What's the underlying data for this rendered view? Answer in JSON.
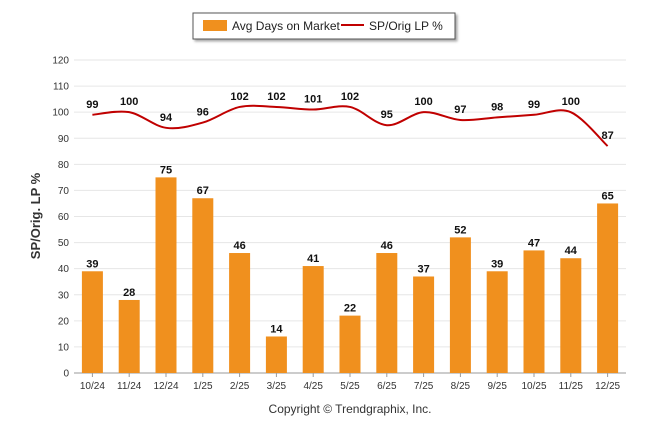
{
  "chart_data": {
    "type": "bar",
    "categories": [
      "10/24",
      "11/24",
      "12/24",
      "1/25",
      "2/25",
      "3/25",
      "4/25",
      "5/25",
      "6/25",
      "7/25",
      "8/25",
      "9/25",
      "10/25",
      "11/25",
      "12/25"
    ],
    "series": [
      {
        "name": "Avg Days on Market",
        "type": "bar",
        "values": [
          39,
          28,
          75,
          67,
          46,
          14,
          41,
          22,
          46,
          37,
          52,
          39,
          47,
          44,
          65
        ]
      },
      {
        "name": "SP/Orig LP %",
        "type": "line",
        "values": [
          99,
          100,
          94,
          96,
          102,
          102,
          101,
          102,
          95,
          100,
          97,
          98,
          99,
          100,
          87
        ]
      }
    ],
    "ylabel": "SP/Orig. LP %",
    "ylim": [
      0,
      120
    ],
    "yticks": [
      0,
      10,
      20,
      30,
      40,
      50,
      60,
      70,
      80,
      90,
      100,
      110,
      120
    ],
    "grid": true,
    "legend_position": "top-center",
    "footer": "Copyright © Trendgraphix, Inc.",
    "colors": {
      "bar": "#F0901E",
      "line": "#C00000",
      "grid": "#E6E6E6",
      "axis": "#9A9A9A"
    }
  }
}
